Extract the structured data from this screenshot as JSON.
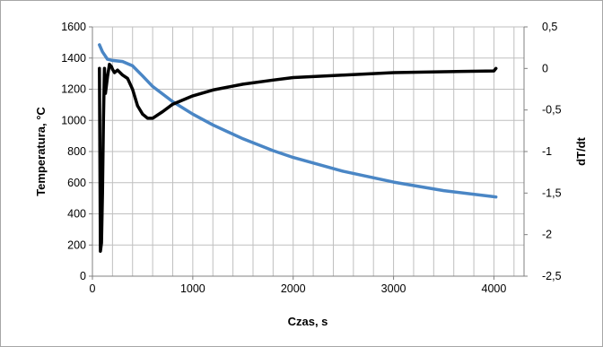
{
  "chart_data": {
    "type": "line",
    "title": "",
    "xlabel": "Czas, s",
    "ylabel": "Temperatura, °C",
    "y2label": "dT/dt",
    "xlim": [
      0,
      4300
    ],
    "ylim": [
      0,
      1600
    ],
    "y2lim": [
      -2.5,
      0.5
    ],
    "grid": true,
    "x_ticks": [
      0,
      1000,
      2000,
      3000,
      4000
    ],
    "x_tick_labels": [
      "0",
      "1000",
      "2000",
      "3000",
      "4000"
    ],
    "x_minor_grid_step": 200,
    "y_ticks": [
      0,
      200,
      400,
      600,
      800,
      1000,
      1200,
      1400,
      1600
    ],
    "y_tick_labels": [
      "0",
      "200",
      "400",
      "600",
      "800",
      "1000",
      "1200",
      "1400",
      "1600"
    ],
    "y2_ticks": [
      0.5,
      0,
      -0.5,
      -1,
      -1.5,
      -2,
      -2.5
    ],
    "y2_tick_labels": [
      "0,5",
      "0",
      "-0,5",
      "-1",
      "-1,5",
      "-2",
      "-2,5"
    ],
    "series": [
      {
        "axis": "left",
        "color": "#4a86c5",
        "x": [
          70,
          100,
          150,
          200,
          300,
          400,
          500,
          600,
          800,
          1000,
          1200,
          1500,
          1800,
          2000,
          2500,
          3000,
          3500,
          4000,
          4020
        ],
        "y": [
          1485,
          1440,
          1392,
          1385,
          1378,
          1350,
          1285,
          1218,
          1120,
          1040,
          971,
          882,
          806,
          762,
          673,
          604,
          549,
          510,
          508
        ]
      },
      {
        "axis": "right",
        "color": "#000000",
        "x": [
          70,
          80,
          90,
          100,
          110,
          120,
          130,
          150,
          170,
          190,
          200,
          220,
          250,
          300,
          350,
          400,
          450,
          500,
          550,
          600,
          700,
          800,
          1000,
          1200,
          1500,
          1800,
          2000,
          2500,
          3000,
          3500,
          4000,
          4020
        ],
        "y": [
          0.0,
          -2.2,
          -2.1,
          -1.5,
          -0.6,
          0.0,
          -0.3,
          -0.1,
          0.05,
          0.02,
          -0.01,
          -0.05,
          -0.02,
          -0.08,
          -0.12,
          -0.25,
          -0.45,
          -0.55,
          -0.6,
          -0.6,
          -0.52,
          -0.43,
          -0.33,
          -0.26,
          -0.19,
          -0.14,
          -0.11,
          -0.08,
          -0.05,
          -0.04,
          -0.03,
          0.0
        ]
      }
    ]
  }
}
